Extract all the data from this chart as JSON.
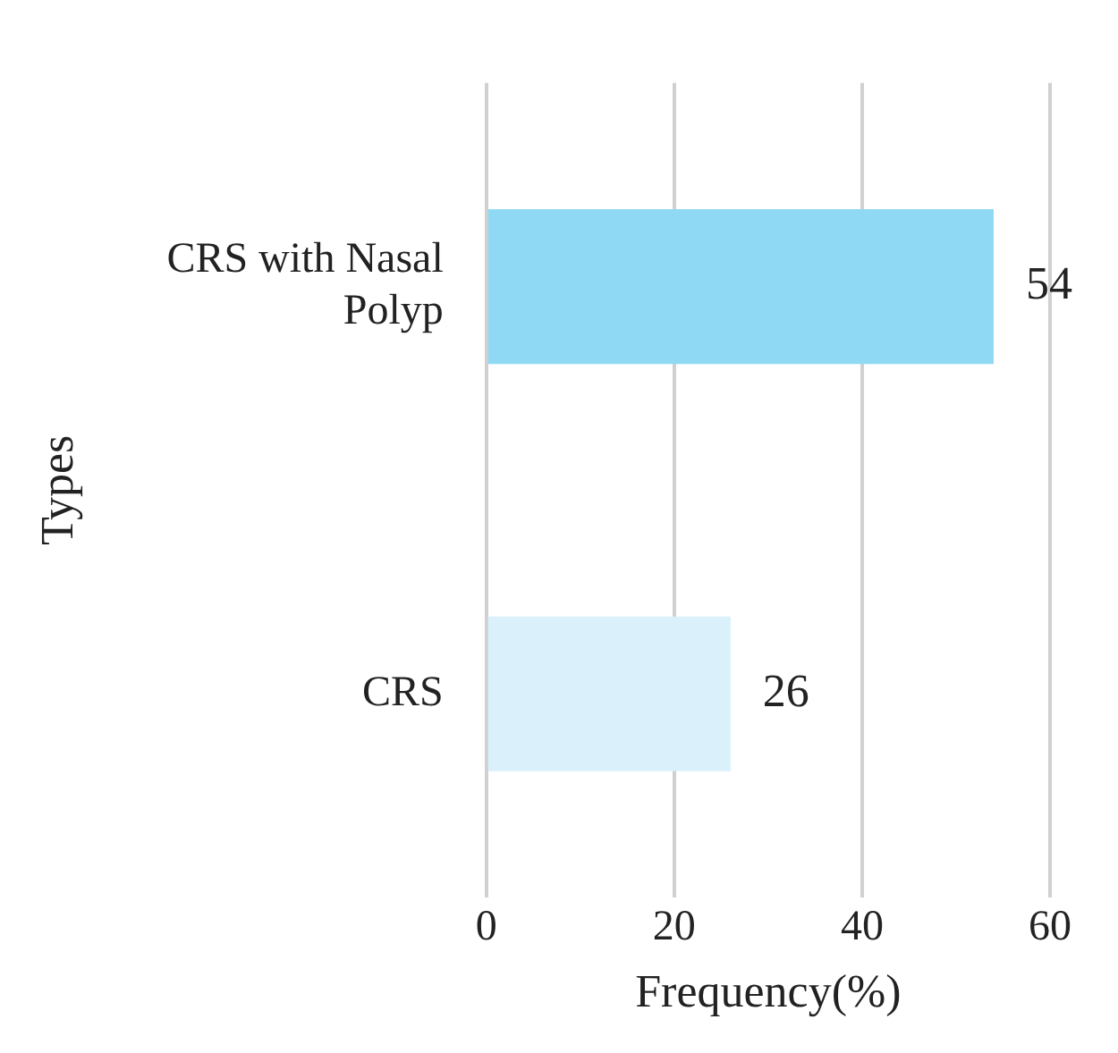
{
  "chart_data": {
    "type": "bar",
    "orientation": "horizontal",
    "xlabel": "Frequency(%)",
    "ylabel": "Types",
    "categories": [
      "CRS with Nasal Polyp",
      "CRS"
    ],
    "values": [
      54,
      26
    ],
    "colors": [
      "#8fd9f5",
      "#daf1fb"
    ],
    "xlim": [
      0,
      60
    ],
    "xticks": [
      0,
      20,
      40,
      60
    ],
    "grid": "x",
    "data_labels": true,
    "legend": false
  }
}
